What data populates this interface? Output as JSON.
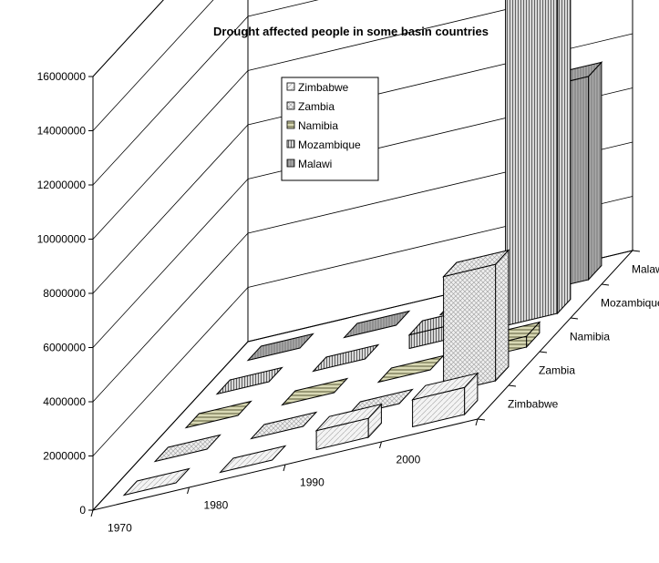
{
  "chart_data": {
    "type": "bar",
    "title": "Drought affected people in some basin countries",
    "categories": [
      "1970",
      "1980",
      "1990",
      "2000"
    ],
    "series": [
      {
        "name": "Zimbabwe",
        "values": [
          0,
          0,
          700000,
          1000000
        ]
      },
      {
        "name": "Zambia",
        "values": [
          0,
          0,
          0,
          4300000
        ]
      },
      {
        "name": "Namibia",
        "values": [
          0,
          0,
          0,
          400000
        ]
      },
      {
        "name": "Mozambique",
        "values": [
          0,
          0,
          500000,
          12500000
        ]
      },
      {
        "name": "Malawi",
        "values": [
          0,
          0,
          0,
          7500000
        ]
      }
    ],
    "y_ticks": [
      "0",
      "2000000",
      "4000000",
      "6000000",
      "8000000",
      "10000000",
      "12000000",
      "14000000",
      "16000000"
    ],
    "ylim": [
      0,
      16000000
    ],
    "legend_position": "top-left",
    "colors": {
      "Zimbabwe": "#f2f2f2",
      "Zambia": "#eeeeee",
      "Namibia": "#d6d6b0",
      "Mozambique": "#cfcfcf",
      "Malawi": "#a9a9a9"
    }
  }
}
